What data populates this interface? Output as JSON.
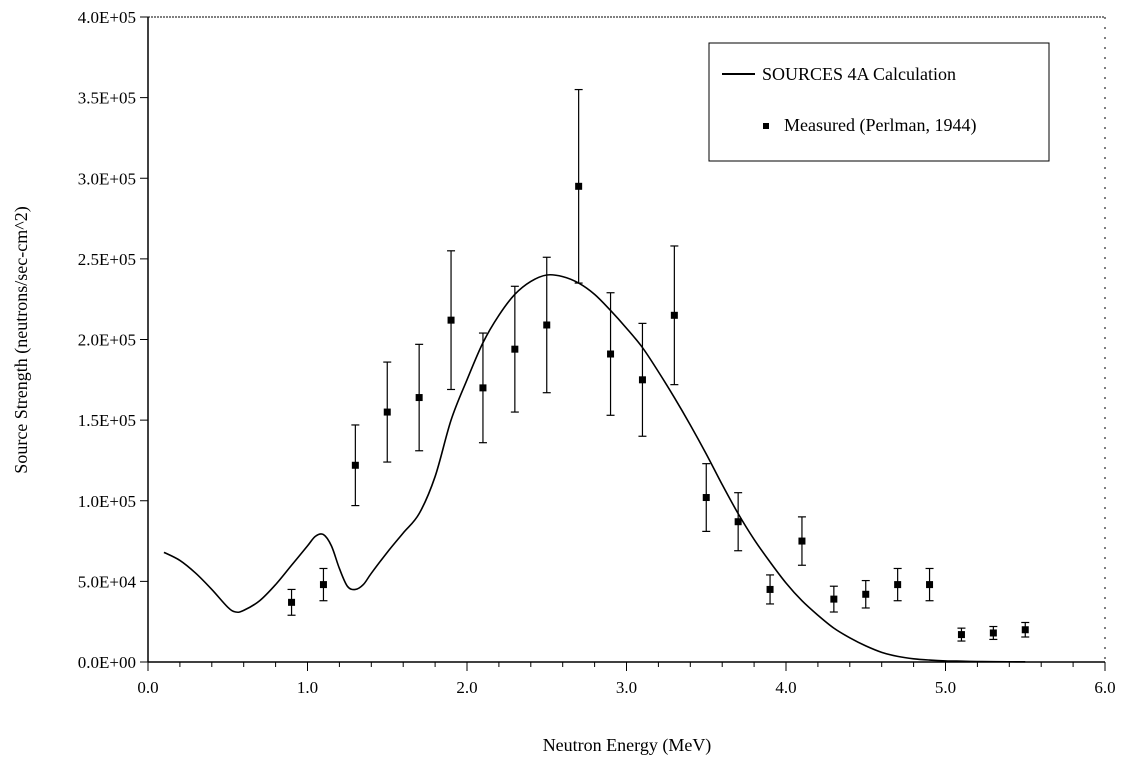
{
  "chart_data": {
    "type": "line",
    "xlabel": "Neutron Energy (MeV)",
    "ylabel": "Source Strength (neutrons/sec-cm^2)",
    "xlim": [
      0.0,
      6.0
    ],
    "ylim": [
      0,
      400000
    ],
    "x_ticks": [
      "0.0",
      "1.0",
      "2.0",
      "3.0",
      "4.0",
      "5.0",
      "6.0"
    ],
    "y_ticks": [
      "0.0E+00",
      "5.0E+04",
      "1.0E+05",
      "1.5E+05",
      "2.0E+05",
      "2.5E+05",
      "3.0E+05",
      "3.5E+05",
      "4.0E+05"
    ],
    "x_tick_values": [
      0,
      1,
      2,
      3,
      4,
      5,
      6
    ],
    "y_tick_values": [
      0,
      50000,
      100000,
      150000,
      200000,
      250000,
      300000,
      350000,
      400000
    ],
    "grid": false,
    "legend_position": "top-right",
    "series": [
      {
        "name": "SOURCES 4A Calculation",
        "kind": "line",
        "color": "#000000",
        "x": [
          0.1,
          0.2,
          0.3,
          0.4,
          0.5,
          0.55,
          0.6,
          0.7,
          0.8,
          0.9,
          1.0,
          1.05,
          1.1,
          1.15,
          1.2,
          1.25,
          1.3,
          1.35,
          1.4,
          1.5,
          1.6,
          1.7,
          1.8,
          1.9,
          2.0,
          2.1,
          2.2,
          2.3,
          2.4,
          2.5,
          2.6,
          2.7,
          2.8,
          2.9,
          3.0,
          3.1,
          3.2,
          3.3,
          3.4,
          3.5,
          3.6,
          3.7,
          3.8,
          3.9,
          4.0,
          4.1,
          4.2,
          4.3,
          4.4,
          4.5,
          4.6,
          4.7,
          4.8,
          4.9,
          5.0,
          5.1,
          5.2,
          5.3,
          5.5
        ],
        "y": [
          68000,
          63000,
          55000,
          45000,
          34000,
          31000,
          32000,
          38000,
          48000,
          60000,
          72000,
          78000,
          79000,
          72000,
          58000,
          47000,
          45000,
          48000,
          55000,
          68000,
          80000,
          92000,
          115000,
          150000,
          175000,
          198000,
          215000,
          228000,
          236000,
          240000,
          239000,
          235000,
          228000,
          218000,
          207000,
          195000,
          180000,
          164000,
          147000,
          129000,
          110000,
          92000,
          76000,
          62000,
          49000,
          38000,
          29000,
          21000,
          15000,
          10000,
          6000,
          3500,
          2000,
          1200,
          700,
          500,
          300,
          200,
          100
        ]
      },
      {
        "name": "Measured (Perlman, 1944)",
        "kind": "scatter",
        "color": "#000000",
        "x": [
          0.9,
          1.1,
          1.3,
          1.5,
          1.7,
          1.9,
          2.1,
          2.3,
          2.5,
          2.7,
          2.9,
          3.1,
          3.3,
          3.5,
          3.7,
          3.9,
          4.1,
          4.3,
          4.5,
          4.7,
          4.9,
          5.1,
          5.3,
          5.5
        ],
        "y": [
          37000,
          48000,
          122000,
          155000,
          164000,
          212000,
          170000,
          194000,
          209000,
          295000,
          191000,
          175000,
          215000,
          102000,
          87000,
          45000,
          75000,
          39000,
          42000,
          48000,
          48000,
          17000,
          18000,
          20000
        ],
        "err_low": [
          8000,
          10000,
          25000,
          31000,
          33000,
          43000,
          34000,
          39000,
          42000,
          60000,
          38000,
          35000,
          43000,
          21000,
          18000,
          9000,
          15000,
          8000,
          8500,
          10000,
          10000,
          4000,
          4000,
          4500
        ],
        "err_high": [
          8000,
          10000,
          25000,
          31000,
          33000,
          43000,
          34000,
          39000,
          42000,
          60000,
          38000,
          35000,
          43000,
          21000,
          18000,
          9000,
          15000,
          8000,
          8500,
          10000,
          10000,
          4000,
          4000,
          4500
        ]
      }
    ]
  }
}
